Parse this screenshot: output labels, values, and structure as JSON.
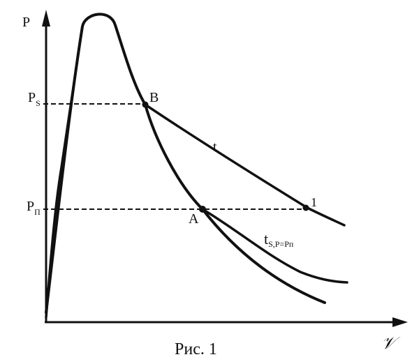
{
  "diagram": {
    "axis_labels": {
      "y": "P",
      "x": "𝒱"
    },
    "tick_labels": {
      "ps_main": "P",
      "ps_sub": "S",
      "pp_main": "P",
      "pp_sub": "П"
    },
    "point_labels": {
      "b": "B",
      "a": "A",
      "one": "1"
    },
    "curve_labels": {
      "t": "t",
      "ts_main": "t",
      "ts_sub": "S,P=Pп"
    },
    "caption": "Рис. 1",
    "colors": {
      "ink": "#111111",
      "background": "#ffffff"
    }
  }
}
